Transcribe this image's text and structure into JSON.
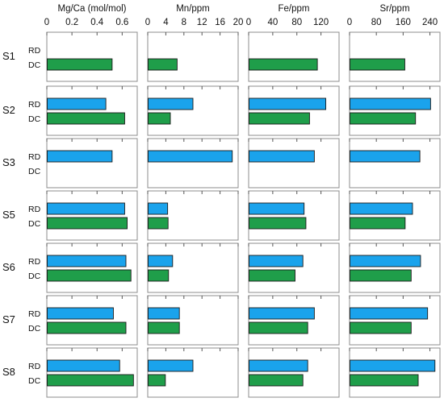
{
  "chart_data": {
    "type": "bar",
    "orientation": "horizontal",
    "samples": [
      "S1",
      "S2",
      "S3",
      "S5",
      "S6",
      "S7",
      "S8"
    ],
    "types": [
      "RD",
      "DC"
    ],
    "colors": {
      "RD": "#1aa3ec",
      "DC": "#1f9e4a"
    },
    "grid": false,
    "panels": [
      {
        "title": "Mg/Ca (mol/mol)",
        "xlim": [
          0,
          0.72
        ],
        "ticks": [
          0,
          0.2,
          0.4,
          0.6
        ],
        "tick_labels": [
          "0",
          "0.2",
          "0.4",
          "0.6"
        ],
        "values": {
          "S1": {
            "RD": null,
            "DC": 0.52
          },
          "S2": {
            "RD": 0.47,
            "DC": 0.62
          },
          "S3": {
            "RD": 0.52,
            "DC": null
          },
          "S5": {
            "RD": 0.62,
            "DC": 0.64
          },
          "S6": {
            "RD": 0.63,
            "DC": 0.67
          },
          "S7": {
            "RD": 0.53,
            "DC": 0.63
          },
          "S8": {
            "RD": 0.58,
            "DC": 0.69
          }
        }
      },
      {
        "title": "Mn/ppm",
        "xlim": [
          0,
          20
        ],
        "ticks": [
          0,
          4,
          8,
          12,
          16,
          20
        ],
        "tick_labels": [
          "0",
          "4",
          "8",
          "12",
          "16",
          "20"
        ],
        "values": {
          "S1": {
            "RD": null,
            "DC": 6.5
          },
          "S2": {
            "RD": 10.0,
            "DC": 5.0
          },
          "S3": {
            "RD": 18.7,
            "DC": null
          },
          "S5": {
            "RD": 4.4,
            "DC": 4.5
          },
          "S6": {
            "RD": 5.5,
            "DC": 4.6
          },
          "S7": {
            "RD": 7.0,
            "DC": 7.0
          },
          "S8": {
            "RD": 10.0,
            "DC": 3.9
          }
        }
      },
      {
        "title": "Fe/ppm",
        "xlim": [
          0,
          150
        ],
        "ticks": [
          0,
          40,
          80,
          120
        ],
        "tick_labels": [
          "0",
          "40",
          "80",
          "120"
        ],
        "values": {
          "S1": {
            "RD": null,
            "DC": 114
          },
          "S2": {
            "RD": 128,
            "DC": 101
          },
          "S3": {
            "RD": 109,
            "DC": null
          },
          "S5": {
            "RD": 92,
            "DC": 95
          },
          "S6": {
            "RD": 90,
            "DC": 77
          },
          "S7": {
            "RD": 109,
            "DC": 98
          },
          "S8": {
            "RD": 98,
            "DC": 90
          }
        }
      },
      {
        "title": "Sr/ppm",
        "xlim": [
          0,
          270
        ],
        "ticks": [
          0,
          80,
          160,
          240
        ],
        "tick_labels": [
          "0",
          "80",
          "160",
          "240"
        ],
        "values": {
          "S1": {
            "RD": null,
            "DC": 165
          },
          "S2": {
            "RD": 242,
            "DC": 197
          },
          "S3": {
            "RD": 210,
            "DC": null
          },
          "S5": {
            "RD": 188,
            "DC": 166
          },
          "S6": {
            "RD": 212,
            "DC": 184
          },
          "S7": {
            "RD": 233,
            "DC": 184
          },
          "S8": {
            "RD": 255,
            "DC": 205
          }
        }
      }
    ]
  }
}
